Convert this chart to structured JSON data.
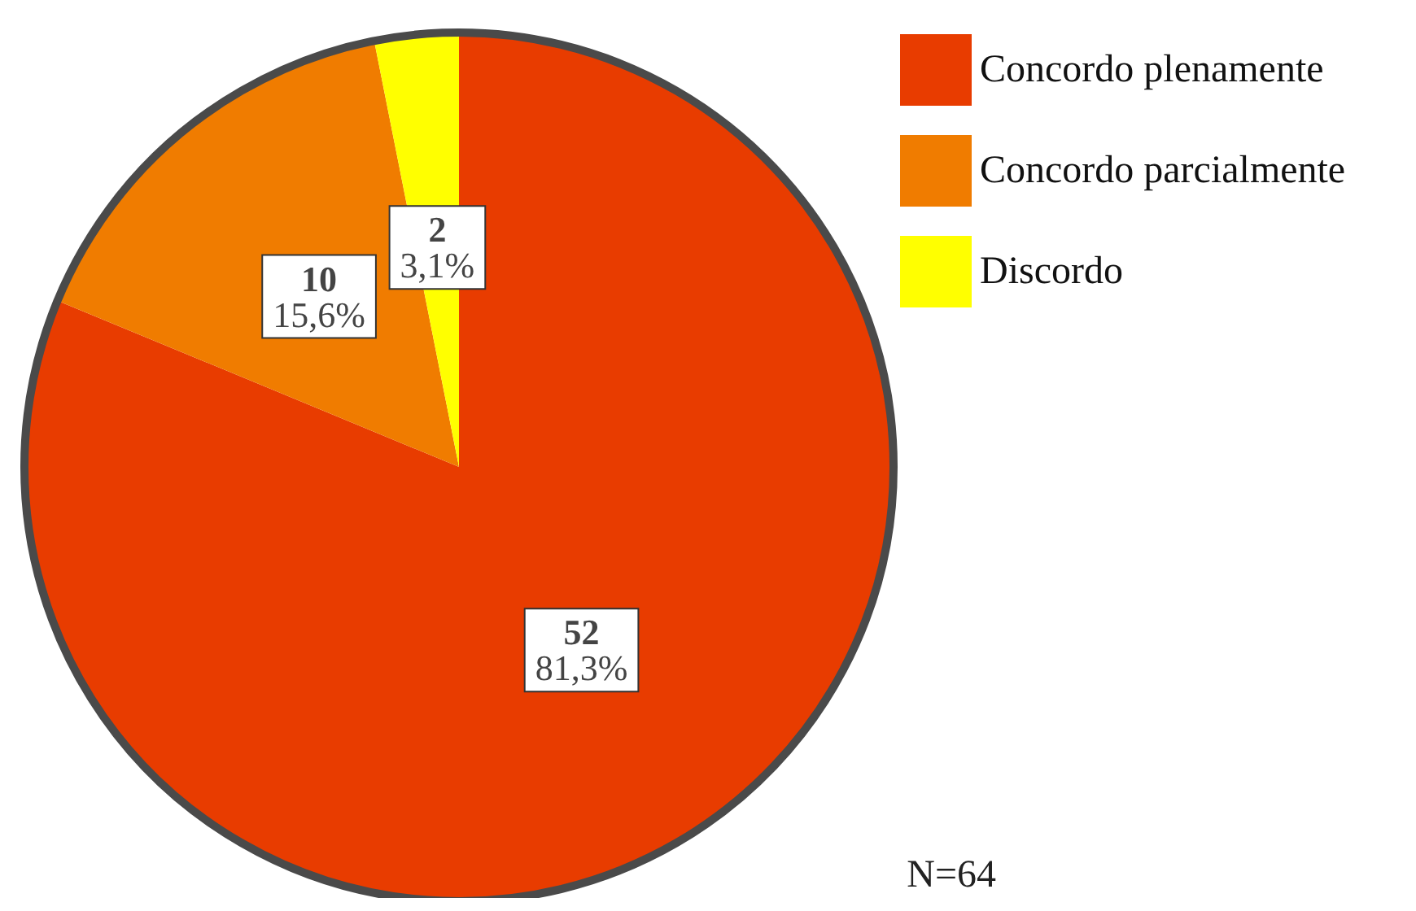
{
  "chart_data": {
    "type": "pie",
    "categories": [
      "Concordo plenamente",
      "Concordo parcialmente",
      "Discordo"
    ],
    "values": [
      52,
      10,
      2
    ],
    "colors": [
      "#e83c00",
      "#f07c00",
      "#ffff00"
    ],
    "value_labels": [
      "52\n81,3%",
      "10\n15,6%",
      "2\n3,1%"
    ],
    "legend": "top right",
    "annotations": [
      "N=64"
    ]
  }
}
